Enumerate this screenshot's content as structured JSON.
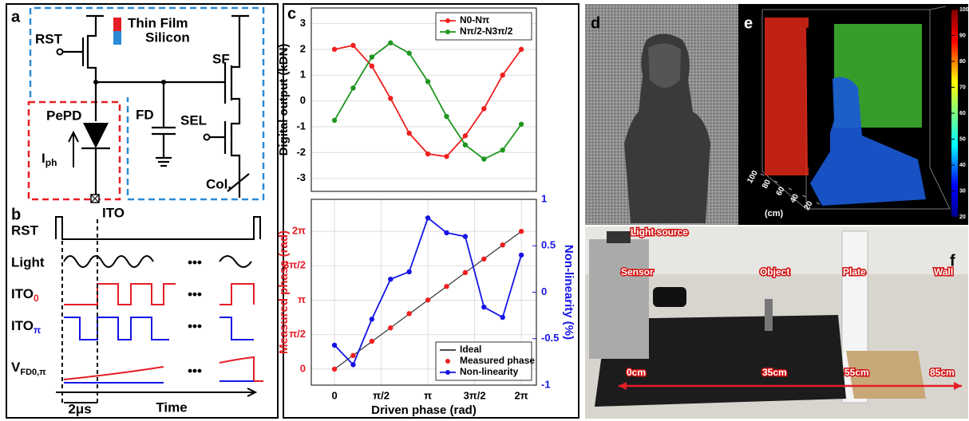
{
  "panel_labels": [
    "a",
    "b",
    "c",
    "d",
    "e",
    "f"
  ],
  "circuit": {
    "legend": [
      "Thin Film",
      "Silicon"
    ],
    "rst": "RST",
    "sf": "SF",
    "fd": "FD",
    "sel": "SEL",
    "pepd": "PePD",
    "iph": {
      "main": "I",
      "sub": "ph"
    },
    "col": "Col.",
    "ito": "ITO"
  },
  "timing": {
    "rows": [
      "RST",
      "Light",
      {
        "main": "ITO",
        "sub": "0"
      },
      {
        "main": "ITO",
        "sub": "π"
      },
      {
        "main": "V",
        "sub": "FD0,π"
      }
    ],
    "ellipsis": "•••",
    "interval": "2μs",
    "axis": "Time"
  },
  "chart_data": [
    {
      "type": "line",
      "ylabel": "Digital output (kDN)",
      "x": [
        0,
        0.628,
        1.257,
        1.885,
        2.513,
        3.142,
        3.77,
        4.398,
        5.027,
        5.655,
        6.283
      ],
      "xlim": [
        -0.78,
        6.79
      ],
      "ylim": [
        -3.5,
        3.6
      ],
      "yticks": [
        -3,
        -2,
        -1,
        0,
        1,
        2,
        3
      ],
      "grid": true,
      "legend": "upper right",
      "series": [
        {
          "name": "N0-Nπ",
          "color": "#f01e1e",
          "mode": "line-markers",
          "values": [
            2.0,
            2.15,
            1.35,
            0.1,
            -1.25,
            -2.05,
            -2.15,
            -1.35,
            -0.3,
            1.0,
            2.0
          ]
        },
        {
          "name": "Nπ/2-N3π/2",
          "color": "#1e961e",
          "mode": "line-markers",
          "values": [
            -0.75,
            0.5,
            1.7,
            2.25,
            1.85,
            0.75,
            -0.6,
            -1.7,
            -2.25,
            -1.9,
            -0.9
          ]
        }
      ]
    },
    {
      "type": "line",
      "xlabel": "Driven phase (rad)",
      "ylabel": "Measured phase (rad)",
      "y2label": "Non-linearity (%)",
      "ylabel_color": "#e41e26",
      "y2label_color": "#1414e6",
      "x": [
        0,
        0.628,
        1.257,
        1.885,
        2.513,
        3.142,
        3.77,
        4.398,
        5.027,
        5.655,
        6.283
      ],
      "xlim": [
        -0.78,
        6.79
      ],
      "ylim": [
        -0.73,
        7.74
      ],
      "y2lim": [
        -1,
        1
      ],
      "xticks": [
        0,
        {
          "value": 1.5708,
          "label": "π/2"
        },
        {
          "value": 3.1416,
          "label": "π"
        },
        {
          "value": 4.7124,
          "label": "3π/2"
        },
        {
          "value": 6.2832,
          "label": "2π"
        }
      ],
      "yticks": [
        0,
        {
          "value": 1.5708,
          "label": "π/2"
        },
        {
          "value": 3.1416,
          "label": "π"
        },
        {
          "value": 4.7124,
          "label": "3π/2"
        },
        {
          "value": 6.2832,
          "label": "2π"
        }
      ],
      "y2ticks": [
        -1,
        -0.5,
        0,
        0.5,
        1
      ],
      "grid": true,
      "legend": "lower right",
      "series": [
        {
          "name": "Ideal",
          "color": "#333333",
          "mode": "line",
          "values": [
            0,
            0.628,
            1.257,
            1.885,
            2.513,
            3.142,
            3.77,
            4.398,
            5.027,
            5.655,
            6.283
          ]
        },
        {
          "name": "Measured phase",
          "color": "#f01e1e",
          "mode": "markers",
          "values": [
            0,
            0.62,
            1.27,
            1.88,
            2.53,
            3.15,
            3.77,
            4.4,
            5.02,
            5.66,
            6.28
          ]
        },
        {
          "name": "Non-linearity",
          "color": "#1414e6",
          "mode": "line-markers",
          "axis": "y2",
          "values": [
            -0.57,
            -0.78,
            -0.29,
            0.14,
            0.22,
            0.8,
            0.64,
            0.6,
            -0.16,
            -0.27,
            0.4
          ]
        }
      ]
    }
  ],
  "depth_map": {
    "colorbar": {
      "lim": [
        20,
        100
      ],
      "ticks": [
        100,
        90,
        80,
        70,
        60,
        50,
        40,
        30,
        20
      ]
    },
    "depth_axis": {
      "lim": [
        20,
        100
      ],
      "ticks": [
        100,
        80,
        60,
        40,
        20
      ],
      "unit": "(cm)"
    }
  },
  "setup_photo": {
    "labels": [
      "Light source",
      "Sensor",
      "Object",
      "Plate",
      "Wall"
    ],
    "distances": [
      "0cm",
      "35cm",
      "55cm",
      "85cm"
    ]
  }
}
